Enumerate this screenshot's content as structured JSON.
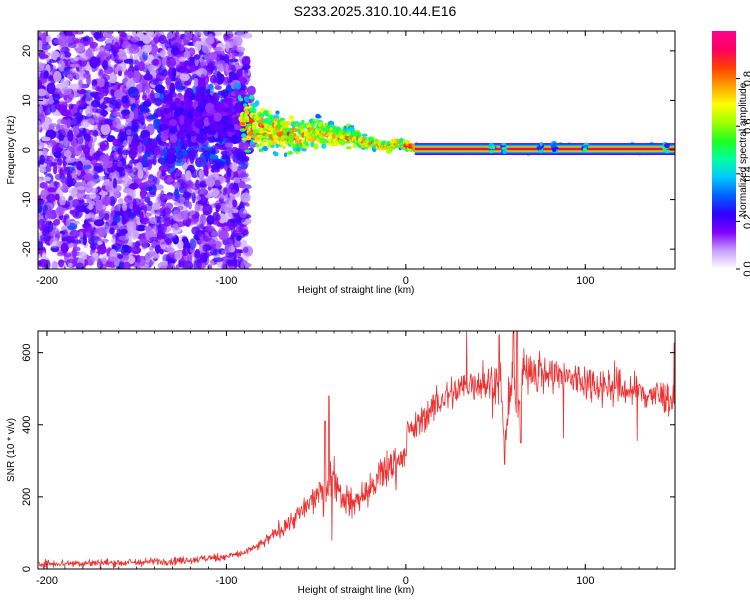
{
  "title": "S233.2025.310.10.44.E16",
  "chart_data": [
    {
      "type": "heatmap",
      "name": "spectrogram",
      "xlabel": "Height of straight line (km)",
      "ylabel": "Frequency (Hz)",
      "xlim": [
        -205,
        150
      ],
      "ylim": [
        -24,
        24
      ],
      "x_ticks": [
        -200,
        -100,
        0,
        100
      ],
      "x_tick_labels": [
        "-200",
        "-100",
        "0",
        "100"
      ],
      "y_ticks": [
        -20,
        -10,
        0,
        10,
        20
      ],
      "y_tick_labels": [
        "-20",
        "-10",
        "0",
        "10",
        "20"
      ],
      "ridge": {
        "description": "Dominant high-amplitude frequency ridge",
        "x": [
          -90,
          -80,
          -70,
          -60,
          -50,
          -40,
          -30,
          -20,
          -10,
          -5,
          0,
          5,
          10,
          20,
          50,
          100,
          150
        ],
        "y": [
          6,
          4.5,
          3.5,
          3,
          3.5,
          3,
          2.5,
          1.5,
          0.5,
          1.5,
          1,
          0.5,
          0.2,
          0.2,
          0.2,
          0.2,
          0.2
        ]
      },
      "noise_region": [
        -205,
        -90
      ],
      "colorbar": {
        "label": "Normalized spectral amplitude",
        "range": [
          0,
          1
        ],
        "ticks": [
          0.0,
          0.2,
          0.4,
          0.6,
          0.8
        ],
        "tick_labels": [
          "0.0",
          "0.2",
          "0.4",
          "0.6",
          "0.8"
        ],
        "colors": [
          "#ffffff",
          "#c8a0ff",
          "#8000ff",
          "#3000ff",
          "#0060ff",
          "#00c8ff",
          "#00ffa0",
          "#20ff20",
          "#a0ff00",
          "#ffff00",
          "#ffa000",
          "#ff4000",
          "#ff0060",
          "#ff0090"
        ]
      }
    },
    {
      "type": "line",
      "name": "snr",
      "xlabel": "Height of straight line (km)",
      "ylabel": "SNR (10 * v/v)",
      "xlim": [
        -205,
        150
      ],
      "ylim": [
        0,
        660
      ],
      "x_ticks": [
        -200,
        -100,
        0,
        100
      ],
      "x_tick_labels": [
        "-200",
        "-100",
        "0",
        "100"
      ],
      "y_ticks": [
        0,
        200,
        400,
        600
      ],
      "y_tick_labels": [
        "0",
        "200",
        "400",
        "600"
      ],
      "color": "#ee3030",
      "envelope": {
        "x": [
          -205,
          -150,
          -120,
          -100,
          -90,
          -80,
          -70,
          -60,
          -50,
          -42,
          -40,
          -35,
          -30,
          -20,
          -10,
          0,
          1,
          5,
          10,
          20,
          30,
          40,
          45,
          50,
          53,
          55,
          57,
          60,
          62,
          65,
          70,
          80,
          100,
          120,
          150
        ],
        "y": [
          15,
          18,
          25,
          35,
          45,
          70,
          110,
          150,
          200,
          240,
          260,
          200,
          180,
          220,
          280,
          320,
          390,
          390,
          420,
          470,
          500,
          520,
          510,
          530,
          480,
          330,
          430,
          540,
          400,
          540,
          560,
          540,
          520,
          500,
          470
        ]
      },
      "spikes": [
        {
          "x": -45,
          "y": 410
        },
        {
          "x": -43,
          "y": 480
        },
        {
          "x": -48,
          "y": 240
        },
        {
          "x": -41,
          "y": 80
        },
        {
          "x": 2,
          "y": 120
        },
        {
          "x": 52,
          "y": 650
        },
        {
          "x": 55,
          "y": 290
        },
        {
          "x": 60,
          "y": 660
        },
        {
          "x": 62,
          "y": 660
        },
        {
          "x": 64,
          "y": 350
        }
      ]
    }
  ]
}
